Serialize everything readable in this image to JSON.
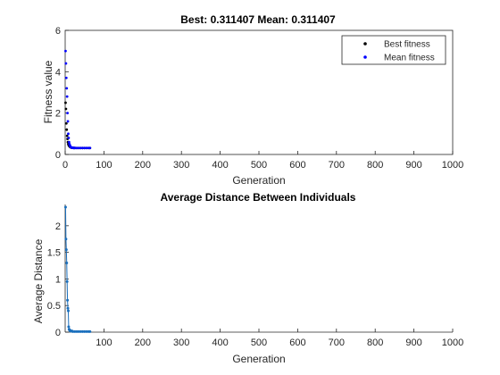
{
  "chart_data": [
    {
      "type": "scatter",
      "title": "Best: 0.311407 Mean: 0.311407",
      "xlabel": "Generation",
      "ylabel": "Fitness value",
      "xlim": [
        0,
        1000
      ],
      "ylim": [
        0,
        6
      ],
      "xticks": [
        0,
        100,
        200,
        300,
        400,
        500,
        600,
        700,
        800,
        900,
        1000
      ],
      "yticks": [
        0,
        2,
        4,
        6
      ],
      "legend": "top-right",
      "series": [
        {
          "name": "Best fitness",
          "color": "#000000",
          "x": [
            1,
            2,
            3,
            4,
            5,
            6,
            7,
            8,
            9,
            10,
            11,
            12,
            13,
            14,
            15,
            16,
            17,
            18,
            19,
            20,
            22,
            25,
            30,
            35,
            40,
            45,
            50,
            55,
            60,
            64
          ],
          "y": [
            2.5,
            2.2,
            1.5,
            1.2,
            0.9,
            0.75,
            0.6,
            0.5,
            0.45,
            0.42,
            0.4,
            0.38,
            0.36,
            0.35,
            0.34,
            0.33,
            0.33,
            0.32,
            0.32,
            0.32,
            0.315,
            0.315,
            0.312,
            0.312,
            0.312,
            0.311,
            0.311,
            0.311,
            0.311,
            0.311
          ]
        },
        {
          "name": "Mean fitness",
          "color": "#0000ff",
          "x": [
            1,
            2,
            3,
            4,
            5,
            6,
            7,
            8,
            9,
            10,
            11,
            12,
            13,
            14,
            15,
            16,
            17,
            18,
            19,
            20,
            22,
            25,
            30,
            35,
            40,
            45,
            50,
            55,
            60,
            64
          ],
          "y": [
            5.0,
            4.4,
            3.7,
            3.2,
            2.8,
            2.0,
            1.6,
            1.0,
            0.8,
            0.6,
            0.5,
            0.45,
            0.4,
            0.37,
            0.35,
            0.34,
            0.33,
            0.33,
            0.32,
            0.32,
            0.315,
            0.315,
            0.312,
            0.312,
            0.312,
            0.311,
            0.311,
            0.311,
            0.311,
            0.311
          ]
        }
      ]
    },
    {
      "type": "line",
      "title": "Average Distance Between Individuals",
      "xlabel": "Generation",
      "ylabel": "Average Distance",
      "xlim": [
        0,
        1000
      ],
      "ylim": [
        0,
        2.4
      ],
      "xticks": [
        100,
        200,
        300,
        400,
        500,
        600,
        700,
        800,
        900,
        1000
      ],
      "yticks": [
        0,
        0.5,
        1,
        1.5,
        2
      ],
      "ytick_labels": [
        "0",
        "0.5",
        "1",
        "1.5",
        "2"
      ],
      "series": [
        {
          "color": "#1a6fbd",
          "x": [
            1,
            2,
            3,
            4,
            5,
            6,
            7,
            8,
            9,
            10,
            11,
            12,
            13,
            14,
            15,
            16,
            18,
            20,
            25,
            30,
            35,
            40,
            45,
            50,
            55,
            60,
            64
          ],
          "y": [
            2.35,
            1.75,
            1.55,
            1.3,
            0.95,
            0.6,
            0.45,
            0.4,
            0.1,
            0.05,
            0.05,
            0.03,
            0.03,
            0.02,
            0.02,
            0.02,
            0.02,
            0.01,
            0.01,
            0.01,
            0.01,
            0.01,
            0.01,
            0.01,
            0.01,
            0.01,
            0.01
          ]
        }
      ]
    }
  ]
}
